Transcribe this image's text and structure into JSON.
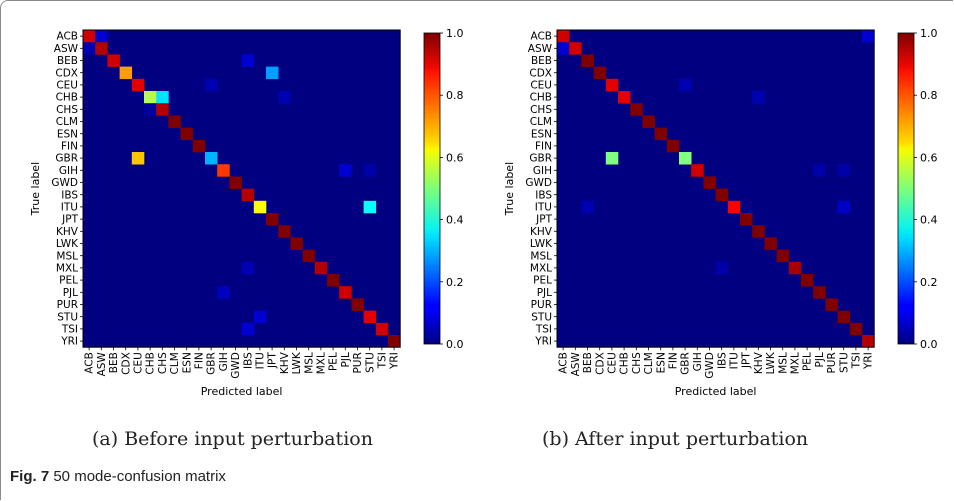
{
  "figure": {
    "label": "Fig. 7",
    "caption": "50 mode-confusion matrix"
  },
  "colors": {
    "colormap": "jet"
  },
  "chart_data": [
    {
      "type": "heatmap",
      "subcaption": "(a) Before input perturbation",
      "xlabel": "Predicted label",
      "ylabel": "True label",
      "labels": [
        "ACB",
        "ASW",
        "BEB",
        "CDX",
        "CEU",
        "CHB",
        "CHS",
        "CLM",
        "ESN",
        "FIN",
        "GBR",
        "GIH",
        "GWD",
        "IBS",
        "ITU",
        "JPT",
        "KHV",
        "LWK",
        "MSL",
        "MXL",
        "PEL",
        "PJL",
        "PUR",
        "STU",
        "TSI",
        "YRI"
      ],
      "colorbar": {
        "min": 0.0,
        "max": 1.0,
        "ticks": [
          "0.0",
          "0.2",
          "0.4",
          "0.6",
          "0.8",
          "1.0"
        ]
      },
      "cells": [
        [
          0,
          0,
          0.92
        ],
        [
          0,
          1,
          0.08
        ],
        [
          1,
          0,
          0.05
        ],
        [
          1,
          1,
          0.95
        ],
        [
          2,
          2,
          0.92
        ],
        [
          2,
          13,
          0.08
        ],
        [
          3,
          3,
          0.72
        ],
        [
          3,
          15,
          0.28
        ],
        [
          4,
          4,
          0.9
        ],
        [
          4,
          10,
          0.05
        ],
        [
          5,
          5,
          0.55
        ],
        [
          5,
          6,
          0.35
        ],
        [
          5,
          16,
          0.05
        ],
        [
          6,
          5,
          0.03
        ],
        [
          6,
          6,
          0.95
        ],
        [
          7,
          7,
          1.0
        ],
        [
          8,
          8,
          1.0
        ],
        [
          9,
          9,
          1.0
        ],
        [
          10,
          4,
          0.68
        ],
        [
          10,
          10,
          0.3
        ],
        [
          11,
          11,
          0.82
        ],
        [
          11,
          21,
          0.08
        ],
        [
          11,
          23,
          0.04
        ],
        [
          12,
          12,
          1.0
        ],
        [
          13,
          13,
          0.95
        ],
        [
          14,
          14,
          0.62
        ],
        [
          14,
          23,
          0.38
        ],
        [
          15,
          15,
          1.0
        ],
        [
          16,
          16,
          1.0
        ],
        [
          17,
          17,
          1.0
        ],
        [
          18,
          18,
          1.0
        ],
        [
          19,
          13,
          0.05
        ],
        [
          19,
          19,
          0.95
        ],
        [
          20,
          20,
          1.0
        ],
        [
          21,
          11,
          0.06
        ],
        [
          21,
          21,
          0.92
        ],
        [
          22,
          22,
          1.0
        ],
        [
          23,
          14,
          0.08
        ],
        [
          23,
          23,
          0.9
        ],
        [
          24,
          13,
          0.08
        ],
        [
          24,
          24,
          0.92
        ],
        [
          25,
          25,
          1.0
        ]
      ]
    },
    {
      "type": "heatmap",
      "subcaption": "(b) After input perturbation",
      "xlabel": "Predicted label",
      "ylabel": "True label",
      "labels": [
        "ACB",
        "ASW",
        "BEB",
        "CDX",
        "CEU",
        "CHB",
        "CHS",
        "CLM",
        "ESN",
        "FIN",
        "GBR",
        "GIH",
        "GWD",
        "IBS",
        "ITU",
        "JPT",
        "KHV",
        "LWK",
        "MSL",
        "MXL",
        "PEL",
        "PJL",
        "PUR",
        "STU",
        "TSI",
        "YRI"
      ],
      "colorbar": {
        "min": 0.0,
        "max": 1.0,
        "ticks": [
          "0.0",
          "0.2",
          "0.4",
          "0.6",
          "0.8",
          "1.0"
        ]
      },
      "cells": [
        [
          0,
          0,
          0.92
        ],
        [
          0,
          25,
          0.08
        ],
        [
          1,
          0,
          0.08
        ],
        [
          1,
          1,
          0.92
        ],
        [
          2,
          2,
          1.0
        ],
        [
          3,
          3,
          1.0
        ],
        [
          4,
          4,
          0.9
        ],
        [
          4,
          10,
          0.05
        ],
        [
          5,
          5,
          0.9
        ],
        [
          5,
          16,
          0.05
        ],
        [
          6,
          6,
          1.0
        ],
        [
          7,
          7,
          1.0
        ],
        [
          8,
          8,
          1.0
        ],
        [
          9,
          9,
          1.0
        ],
        [
          10,
          4,
          0.5
        ],
        [
          10,
          10,
          0.5
        ],
        [
          11,
          11,
          0.92
        ],
        [
          11,
          21,
          0.04
        ],
        [
          11,
          23,
          0.04
        ],
        [
          12,
          12,
          1.0
        ],
        [
          13,
          13,
          1.0
        ],
        [
          14,
          2,
          0.05
        ],
        [
          14,
          14,
          0.88
        ],
        [
          14,
          23,
          0.07
        ],
        [
          15,
          15,
          1.0
        ],
        [
          16,
          16,
          1.0
        ],
        [
          17,
          17,
          1.0
        ],
        [
          18,
          18,
          1.0
        ],
        [
          19,
          13,
          0.04
        ],
        [
          19,
          19,
          0.96
        ],
        [
          20,
          20,
          1.0
        ],
        [
          21,
          21,
          1.0
        ],
        [
          22,
          22,
          1.0
        ],
        [
          23,
          23,
          1.0
        ],
        [
          24,
          24,
          1.0
        ],
        [
          25,
          25,
          0.95
        ]
      ]
    }
  ]
}
